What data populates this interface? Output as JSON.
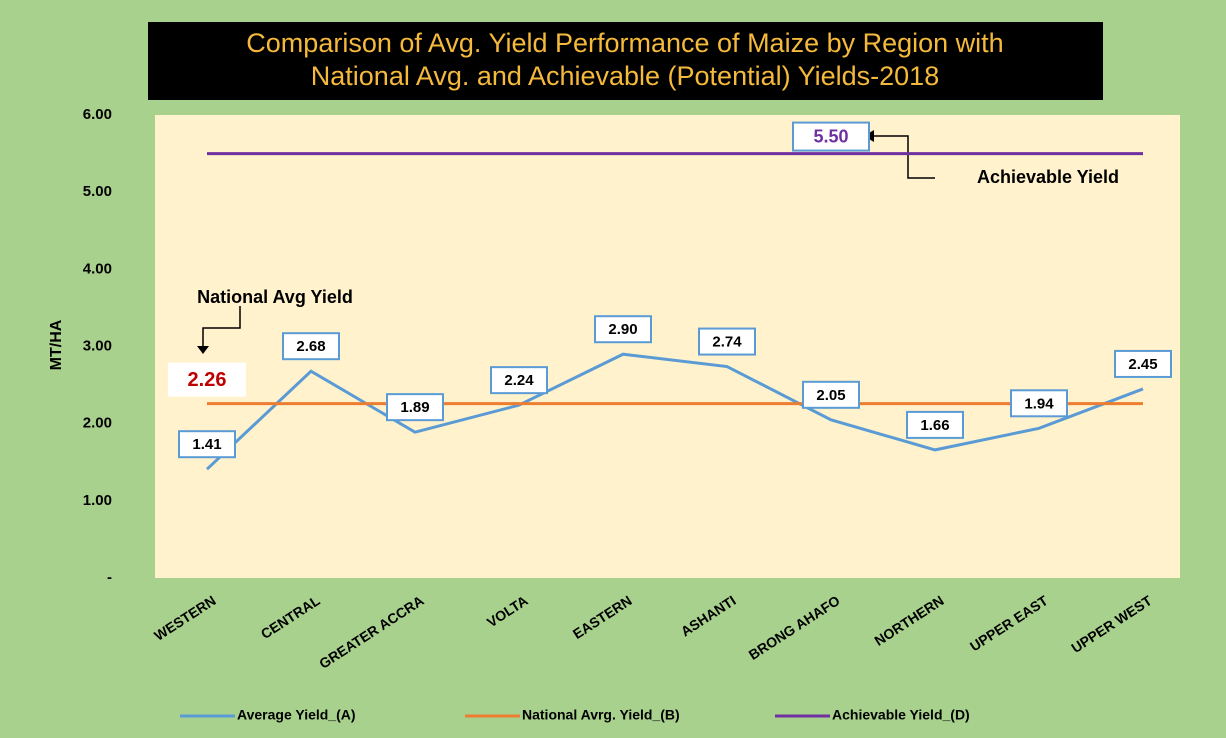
{
  "chart_data": {
    "type": "line",
    "title": "Comparison of Avg. Yield Performance of Maize by Region with",
    "subtitle": "National Avg. and Achievable (Potential) Yields-2018",
    "y_label": "MT/HA",
    "categories": [
      "WESTERN",
      "CENTRAL",
      "GREATER ACCRA",
      "VOLTA",
      "EASTERN",
      "ASHANTI",
      "BRONG AHAFO",
      "NORTHERN",
      "UPPER EAST",
      "UPPER WEST"
    ],
    "series": [
      {
        "name": "Average Yield_(A)",
        "color": "#5b9bd5",
        "values": [
          1.41,
          2.68,
          1.89,
          2.24,
          2.9,
          2.74,
          2.05,
          1.66,
          1.94,
          2.45
        ],
        "value_labels": [
          "1.41",
          "2.68",
          "1.89",
          "2.24",
          "2.90",
          "2.74",
          "2.05",
          "1.66",
          "1.94",
          "2.45"
        ]
      },
      {
        "name": "National Avrg. Yield_(B)",
        "color": "#ed7d31",
        "values": [
          2.26,
          2.26,
          2.26,
          2.26,
          2.26,
          2.26,
          2.26,
          2.26,
          2.26,
          2.26
        ],
        "value_labels": [
          "2.26",
          null,
          null,
          null,
          null,
          null,
          null,
          null,
          null,
          null
        ]
      },
      {
        "name": "Achievable Yield_(D)",
        "color": "#7030a0",
        "values": [
          5.5,
          5.5,
          5.5,
          5.5,
          5.5,
          5.5,
          5.5,
          5.5,
          5.5,
          5.5
        ],
        "value_labels": [
          null,
          null,
          null,
          null,
          null,
          null,
          "5.50",
          null,
          null,
          null
        ]
      }
    ],
    "annotations": [
      "National Avg Yield",
      "Achievable Yield"
    ],
    "ylim": [
      0,
      6
    ],
    "yticks": [
      {
        "value": 0,
        "label": "-"
      },
      {
        "value": 1,
        "label": "1.00"
      },
      {
        "value": 2,
        "label": "2.00"
      },
      {
        "value": 3,
        "label": "3.00"
      },
      {
        "value": 4,
        "label": "4.00"
      },
      {
        "value": 5,
        "label": "5.00"
      },
      {
        "value": 6,
        "label": "6.00"
      }
    ],
    "legend": "bottom"
  }
}
